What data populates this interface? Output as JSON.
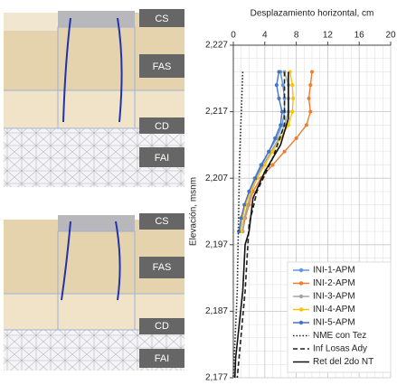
{
  "panels": [
    {
      "labels": [
        "CS",
        "FAS",
        "CD",
        "FAI"
      ]
    },
    {
      "labels": [
        "CS",
        "FAS",
        "CD",
        "FAI"
      ]
    }
  ],
  "chart_data": {
    "type": "line",
    "xlabel": "Desplazamiento horizontal, cm",
    "ylabel": "Elevación, msnm",
    "xlim": [
      0,
      20
    ],
    "xticks": [
      0,
      4,
      8,
      12,
      16,
      20
    ],
    "ylim": [
      2177,
      2227
    ],
    "yticks": [
      {
        "value": 2177,
        "label": "2,177"
      },
      {
        "value": 2187,
        "label": "2,187"
      },
      {
        "value": 2197,
        "label": "2,197"
      },
      {
        "value": 2207,
        "label": "2,207"
      },
      {
        "value": 2217,
        "label": "2,217"
      },
      {
        "value": 2227,
        "label": "2,227"
      }
    ],
    "grid": true,
    "legend": "lower right",
    "series": [
      {
        "name": "INI-1-APM",
        "color": "#5b9bd5",
        "marker": true,
        "dash": "solid",
        "elevations": [
          2223,
          2221,
          2219,
          2217,
          2215,
          2213,
          2211,
          2209,
          2207,
          2205,
          2203,
          2201,
          2199
        ],
        "values": [
          6,
          6.3,
          6.5,
          6.5,
          6.2,
          5.5,
          4.5,
          3.5,
          2.7,
          2,
          1.5,
          1,
          0.8
        ]
      },
      {
        "name": "INI-2-APM",
        "color": "#ed7d31",
        "marker": true,
        "dash": "solid",
        "elevations": [
          2223,
          2221,
          2219,
          2217,
          2215,
          2213,
          2211,
          2209,
          2207,
          2205,
          2203,
          2201,
          2199
        ],
        "values": [
          10,
          9.8,
          9.6,
          9.8,
          9.3,
          8,
          6.5,
          5,
          3.5,
          2.5,
          2,
          1.5,
          1.2
        ]
      },
      {
        "name": "INI-3-APM",
        "color": "#a5a5a5",
        "marker": true,
        "dash": "solid",
        "elevations": [
          2223,
          2221,
          2219,
          2217,
          2215,
          2213,
          2211,
          2209,
          2207,
          2205,
          2203,
          2201,
          2199
        ],
        "values": [
          6.5,
          7,
          7,
          7,
          6.5,
          5.8,
          4.8,
          3.8,
          3,
          2.3,
          1.8,
          1.4,
          1.2
        ]
      },
      {
        "name": "INI-4-APM",
        "color": "#ffc000",
        "marker": true,
        "dash": "solid",
        "elevations": [
          2223,
          2221,
          2219,
          2217,
          2215,
          2213,
          2211,
          2209,
          2207,
          2205,
          2203,
          2201,
          2199
        ],
        "values": [
          7.2,
          7.5,
          7.6,
          7.5,
          7,
          6,
          5,
          4,
          3,
          2.2,
          1.5,
          1.2,
          1
        ]
      },
      {
        "name": "INI-5-APM",
        "color": "#4472c4",
        "marker": true,
        "dash": "solid",
        "elevations": [
          2223,
          2221,
          2219,
          2217,
          2215,
          2213,
          2211,
          2209,
          2207,
          2205,
          2203,
          2201,
          2199
        ],
        "values": [
          5.8,
          5.5,
          5.8,
          6.2,
          6,
          5.3,
          4.5,
          3.6,
          2.8,
          2,
          1.4,
          1,
          0.7
        ]
      },
      {
        "name": "NME con Tez",
        "color": "#222222",
        "marker": false,
        "dash": "dotted",
        "elevations": [
          2223,
          2210,
          2190,
          2177
        ],
        "values": [
          1.2,
          0.8,
          0.5,
          0
        ]
      },
      {
        "name": "Inf Losas Ady",
        "color": "#222222",
        "marker": false,
        "dash": "dashed",
        "elevations": [
          2223,
          2215,
          2210,
          2205,
          2200,
          2190,
          2177
        ],
        "values": [
          6.5,
          6.5,
          5,
          3,
          2,
          1.5,
          0.5
        ]
      },
      {
        "name": "Ret del 2do NT",
        "color": "#111111",
        "marker": false,
        "dash": "solid",
        "elevations": [
          2223,
          2216,
          2212,
          2208,
          2204,
          2199,
          2197,
          2190,
          2180,
          2177
        ],
        "values": [
          7,
          7,
          6,
          4,
          2.5,
          2,
          1.5,
          1.2,
          0.3,
          0.2
        ]
      }
    ]
  }
}
